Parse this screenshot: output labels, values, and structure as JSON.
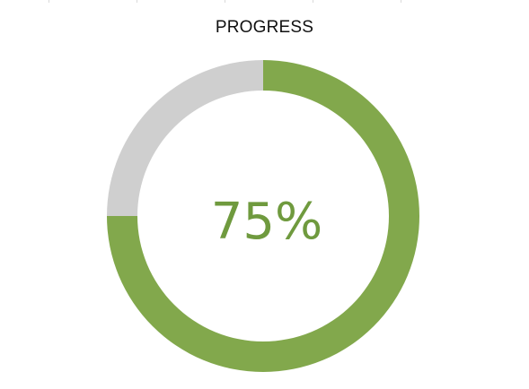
{
  "chart_data": {
    "type": "pie",
    "title": "PROGRESS",
    "value_label": "75%",
    "progress": 0.75,
    "slices": [
      {
        "name": "",
        "value": 75,
        "color": "#82a84c"
      },
      {
        "name": "",
        "value": 25,
        "color": "#cfcfcf"
      }
    ]
  },
  "colors": {
    "accent": "#82a84c",
    "remainder": "#cfcfcf",
    "value_text": "#6f9a3e"
  }
}
